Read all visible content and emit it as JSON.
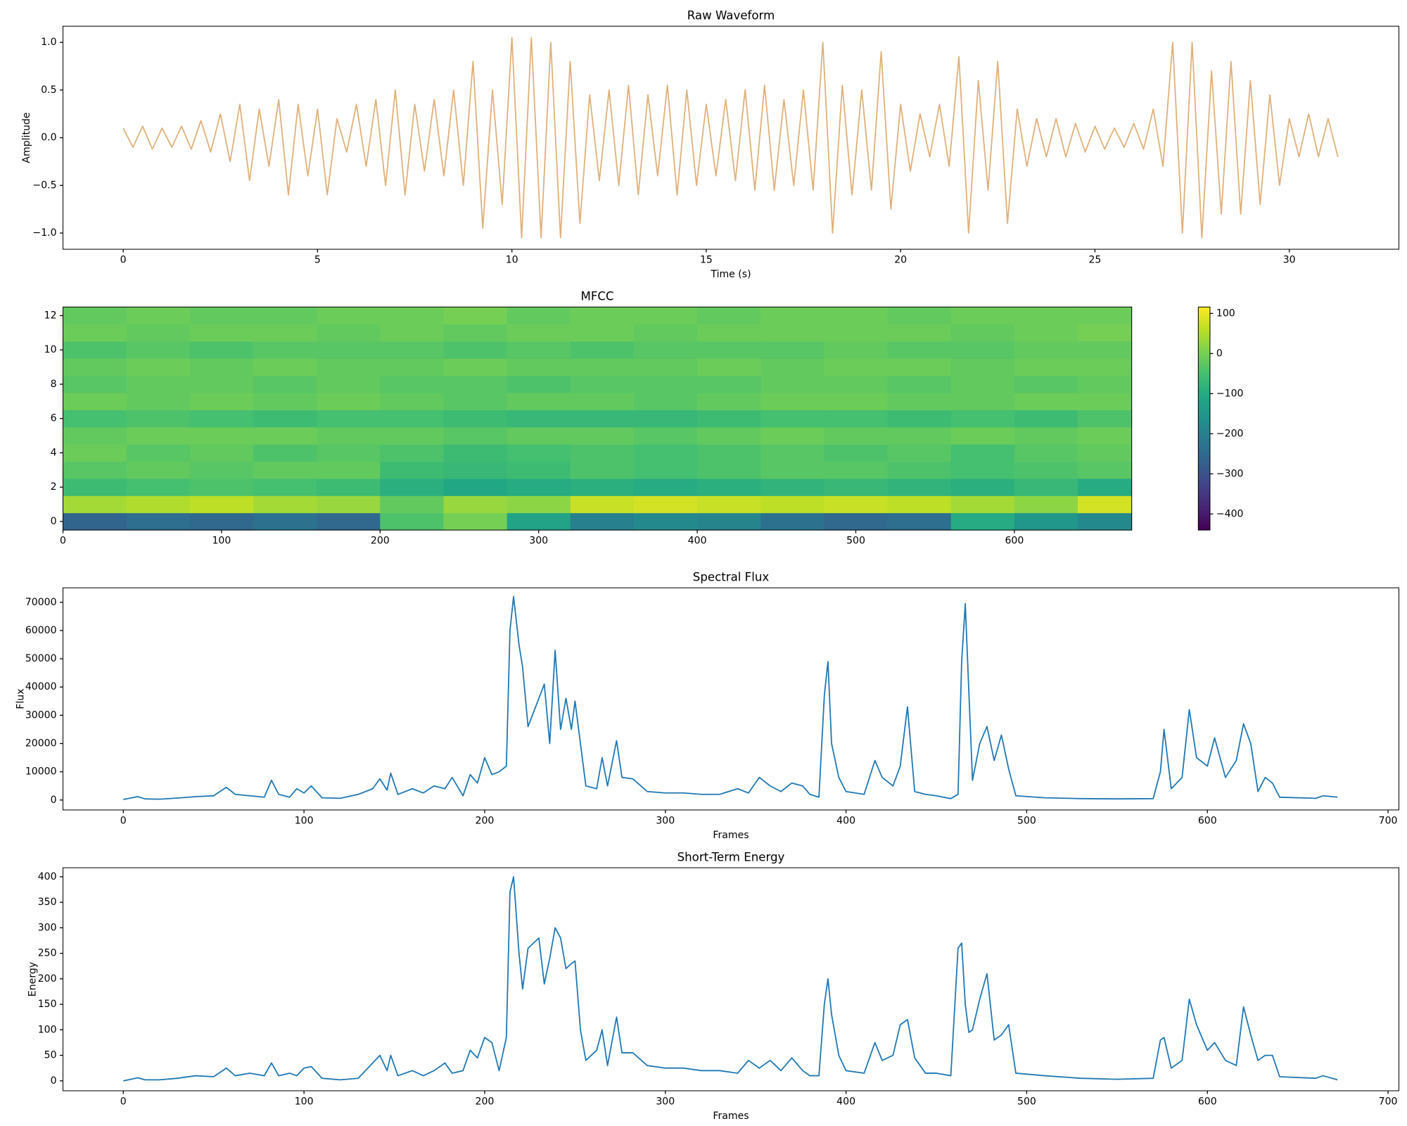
{
  "chart_data": [
    {
      "type": "line",
      "title": "Raw Waveform",
      "xlabel": "Time (s)",
      "ylabel": "Amplitude",
      "color": "#e0b07a",
      "xlim": [
        -1.55,
        32.82
      ],
      "ylim": [
        -1.17,
        1.17
      ],
      "xticks": [
        0,
        5,
        10,
        15,
        20,
        25,
        30
      ],
      "yticks": [
        {
          "value": -1,
          "label": "−1.0"
        },
        {
          "value": -0.5,
          "label": "−0.5"
        },
        {
          "value": 0,
          "label": "0.0"
        },
        {
          "value": 0.5,
          "label": "0.5"
        },
        {
          "value": 1,
          "label": "1.0"
        }
      ],
      "x": [
        0,
        0.25,
        0.5,
        0.75,
        1,
        1.25,
        1.5,
        1.75,
        2,
        2.25,
        2.5,
        2.75,
        3,
        3.25,
        3.5,
        3.75,
        4,
        4.25,
        4.5,
        4.75,
        5,
        5.25,
        5.5,
        5.75,
        6,
        6.25,
        6.5,
        6.75,
        7,
        7.25,
        7.5,
        7.75,
        8,
        8.25,
        8.5,
        8.75,
        9,
        9.25,
        9.5,
        9.75,
        10,
        10.25,
        10.5,
        10.75,
        11,
        11.25,
        11.5,
        11.75,
        12,
        12.25,
        12.5,
        12.75,
        13,
        13.25,
        13.5,
        13.75,
        14,
        14.25,
        14.5,
        14.75,
        15,
        15.25,
        15.5,
        15.75,
        16,
        16.25,
        16.5,
        16.75,
        17,
        17.25,
        17.5,
        17.75,
        18,
        18.25,
        18.5,
        18.75,
        19,
        19.25,
        19.5,
        19.75,
        20,
        20.25,
        20.5,
        20.75,
        21,
        21.25,
        21.5,
        21.75,
        22,
        22.25,
        22.5,
        22.75,
        23,
        23.25,
        23.5,
        23.75,
        24,
        24.25,
        24.5,
        24.75,
        25,
        25.25,
        25.5,
        25.75,
        26,
        26.25,
        26.5,
        26.75,
        27,
        27.25,
        27.5,
        27.75,
        28,
        28.25,
        28.5,
        28.75,
        29,
        29.25,
        29.5,
        29.75,
        30,
        30.25,
        30.5,
        30.75,
        31,
        31.25
      ],
      "values": [
        0.1,
        -0.1,
        0.12,
        -0.12,
        0.1,
        -0.1,
        0.12,
        -0.12,
        0.18,
        -0.15,
        0.25,
        -0.25,
        0.35,
        -0.45,
        0.3,
        -0.3,
        0.4,
        -0.6,
        0.35,
        -0.4,
        0.3,
        -0.6,
        0.2,
        -0.15,
        0.35,
        -0.3,
        0.4,
        -0.5,
        0.5,
        -0.6,
        0.35,
        -0.35,
        0.4,
        -0.4,
        0.5,
        -0.5,
        0.8,
        -0.95,
        0.5,
        -0.7,
        1.05,
        -1.05,
        1.05,
        -1.05,
        1.0,
        -1.05,
        0.8,
        -0.9,
        0.45,
        -0.45,
        0.5,
        -0.5,
        0.55,
        -0.6,
        0.45,
        -0.4,
        0.55,
        -0.6,
        0.5,
        -0.5,
        0.35,
        -0.4,
        0.4,
        -0.45,
        0.5,
        -0.55,
        0.55,
        -0.55,
        0.4,
        -0.5,
        0.5,
        -0.55,
        1.0,
        -1.0,
        0.55,
        -0.6,
        0.5,
        -0.55,
        0.9,
        -0.75,
        0.35,
        -0.35,
        0.25,
        -0.2,
        0.35,
        -0.3,
        0.85,
        -1.0,
        0.6,
        -0.55,
        0.8,
        -0.9,
        0.3,
        -0.3,
        0.2,
        -0.2,
        0.2,
        -0.2,
        0.15,
        -0.15,
        0.12,
        -0.12,
        0.1,
        -0.1,
        0.15,
        -0.12,
        0.3,
        -0.3,
        1.0,
        -1.0,
        1.0,
        -1.05,
        0.7,
        -0.8,
        0.8,
        -0.8,
        0.6,
        -0.7,
        0.45,
        -0.5,
        0.2,
        -0.2,
        0.25,
        -0.2,
        0.2,
        -0.2
      ]
    },
    {
      "type": "heatmap",
      "title": "MFCC",
      "colormap": "viridis",
      "xlim": [
        0,
        674
      ],
      "ylim": [
        -0.5,
        12.5
      ],
      "xticks": [
        0,
        100,
        200,
        300,
        400,
        500,
        600
      ],
      "yticks": [
        0,
        2,
        4,
        6,
        8,
        10,
        12
      ],
      "zlim": [
        -440,
        116
      ],
      "zticks": [
        {
          "value": -400,
          "label": "−400"
        },
        {
          "value": -300,
          "label": "−300"
        },
        {
          "value": -200,
          "label": "−200"
        },
        {
          "value": -100,
          "label": "−100"
        },
        0,
        100
      ],
      "xbins": [
        0,
        40,
        80,
        120,
        160,
        200,
        240,
        280,
        320,
        360,
        400,
        440,
        480,
        520,
        560,
        600,
        640,
        674
      ],
      "z": [
        [
          -260,
          -240,
          -250,
          -230,
          -250,
          -40,
          0,
          -120,
          -200,
          -180,
          -190,
          -230,
          -250,
          -240,
          -100,
          -150,
          -180
        ],
        [
          40,
          50,
          60,
          40,
          30,
          -20,
          30,
          20,
          70,
          80,
          70,
          60,
          70,
          60,
          40,
          20,
          80
        ],
        [
          -60,
          -50,
          -40,
          -50,
          -60,
          -90,
          -110,
          -100,
          -90,
          -100,
          -90,
          -80,
          -70,
          -80,
          -90,
          -70,
          -100
        ],
        [
          -30,
          -20,
          -30,
          -20,
          -20,
          -60,
          -70,
          -60,
          -40,
          -50,
          -40,
          -30,
          -30,
          -40,
          -50,
          -40,
          -30
        ],
        [
          -10,
          -30,
          -20,
          -40,
          -30,
          -40,
          -60,
          -50,
          -40,
          -50,
          -40,
          -30,
          -40,
          -30,
          -50,
          -30,
          -20
        ],
        [
          -20,
          -10,
          -10,
          -10,
          -20,
          -20,
          -30,
          -20,
          -20,
          -30,
          -20,
          -10,
          -20,
          -20,
          -10,
          -20,
          -10
        ],
        [
          -50,
          -40,
          -50,
          -60,
          -50,
          -50,
          -60,
          -70,
          -70,
          -70,
          -60,
          -50,
          -50,
          -60,
          -50,
          -60,
          -40
        ],
        [
          -10,
          -20,
          -10,
          -20,
          -10,
          -20,
          -30,
          -20,
          -20,
          -30,
          -20,
          -10,
          -10,
          -20,
          -20,
          -10,
          -10
        ],
        [
          -30,
          -20,
          -20,
          -30,
          -20,
          -30,
          -30,
          -40,
          -30,
          -30,
          -30,
          -20,
          -20,
          -30,
          -20,
          -30,
          -20
        ],
        [
          -20,
          -10,
          -20,
          -10,
          -20,
          -20,
          -10,
          -20,
          -20,
          -20,
          -10,
          -20,
          -10,
          -10,
          -20,
          -10,
          -10
        ],
        [
          -40,
          -30,
          -40,
          -30,
          -30,
          -30,
          -40,
          -30,
          -40,
          -30,
          -30,
          -30,
          -20,
          -30,
          -30,
          -20,
          -20
        ],
        [
          -10,
          -20,
          -10,
          -10,
          -20,
          -10,
          -20,
          -10,
          -10,
          -20,
          -10,
          -10,
          -10,
          -10,
          -20,
          -10,
          0
        ],
        [
          -20,
          -10,
          -20,
          -20,
          -10,
          -10,
          0,
          -20,
          -10,
          -10,
          -20,
          -10,
          -10,
          -20,
          -10,
          -10,
          -10
        ]
      ]
    },
    {
      "type": "line",
      "title": "Spectral Flux",
      "xlabel": "Frames",
      "ylabel": "Flux",
      "color": "#1f77b4",
      "xlim": [
        -33.4,
        706
      ],
      "ylim": [
        -3516,
        75113
      ],
      "xticks": [
        0,
        100,
        200,
        300,
        400,
        500,
        600,
        700
      ],
      "yticks": [
        0,
        10000,
        20000,
        30000,
        40000,
        50000,
        60000,
        70000
      ],
      "x": [
        0,
        8,
        12,
        20,
        30,
        40,
        50,
        57,
        62,
        70,
        78,
        82,
        86,
        92,
        96,
        100,
        104,
        110,
        120,
        130,
        138,
        142,
        146,
        148,
        152,
        160,
        166,
        172,
        178,
        182,
        188,
        192,
        196,
        200,
        204,
        208,
        212,
        214,
        216,
        219,
        221,
        224,
        230,
        233,
        236,
        239,
        242,
        245,
        248,
        250,
        253,
        256,
        262,
        265,
        268,
        273,
        276,
        282,
        290,
        300,
        310,
        320,
        330,
        340,
        346,
        352,
        358,
        364,
        370,
        376,
        380,
        385,
        388,
        390,
        392,
        396,
        400,
        410,
        416,
        420,
        426,
        430,
        434,
        438,
        444,
        450,
        458,
        462,
        464,
        466,
        468,
        470,
        474,
        478,
        482,
        486,
        490,
        494,
        510,
        530,
        550,
        570,
        574,
        576,
        580,
        586,
        590,
        594,
        600,
        604,
        610,
        616,
        620,
        624,
        628,
        632,
        636,
        640,
        660,
        664,
        672
      ],
      "values": [
        200,
        1200,
        400,
        300,
        700,
        1200,
        1500,
        4500,
        2000,
        1500,
        1000,
        7000,
        2000,
        1000,
        4000,
        2500,
        5000,
        800,
        600,
        2000,
        4000,
        7500,
        3500,
        9500,
        2000,
        4000,
        2500,
        5000,
        4000,
        8000,
        1500,
        9000,
        6000,
        15000,
        9000,
        10000,
        12000,
        60000,
        72000,
        55000,
        47000,
        26000,
        36000,
        41000,
        20000,
        53000,
        25000,
        36000,
        25000,
        35000,
        20000,
        5000,
        4000,
        15000,
        5000,
        21000,
        8000,
        7500,
        3000,
        2500,
        2500,
        2000,
        2000,
        4000,
        2500,
        8000,
        5000,
        3000,
        6000,
        5000,
        2000,
        1000,
        37000,
        49000,
        20000,
        8000,
        3000,
        2000,
        14000,
        8000,
        5000,
        12000,
        33000,
        3000,
        2000,
        1500,
        500,
        2000,
        49000,
        69500,
        38000,
        7000,
        20000,
        26000,
        14000,
        23000,
        11000,
        1500,
        800,
        500,
        400,
        500,
        10000,
        25000,
        4000,
        8000,
        32000,
        15000,
        12000,
        22000,
        8000,
        14000,
        27000,
        20000,
        3000,
        8000,
        6000,
        1000,
        600,
        1500,
        1000
      ]
    },
    {
      "type": "line",
      "title": "Short-Term Energy",
      "xlabel": "Frames",
      "ylabel": "Energy",
      "color": "#1f77b4",
      "xlim": [
        -33.4,
        706
      ],
      "ylim": [
        -19.5,
        417.7
      ],
      "xticks": [
        0,
        100,
        200,
        300,
        400,
        500,
        600,
        700
      ],
      "yticks": [
        0,
        50,
        100,
        150,
        200,
        250,
        300,
        350,
        400
      ],
      "x": [
        0,
        8,
        12,
        20,
        30,
        40,
        50,
        57,
        62,
        70,
        78,
        82,
        86,
        92,
        96,
        100,
        104,
        110,
        120,
        130,
        138,
        142,
        146,
        148,
        152,
        160,
        166,
        172,
        178,
        182,
        188,
        192,
        196,
        200,
        204,
        208,
        212,
        214,
        216,
        219,
        221,
        224,
        230,
        233,
        236,
        239,
        242,
        245,
        248,
        250,
        253,
        256,
        262,
        265,
        268,
        273,
        276,
        282,
        290,
        300,
        310,
        320,
        330,
        340,
        346,
        352,
        358,
        364,
        370,
        376,
        380,
        385,
        388,
        390,
        392,
        396,
        400,
        410,
        416,
        420,
        426,
        430,
        434,
        438,
        444,
        450,
        458,
        462,
        464,
        466,
        468,
        470,
        474,
        478,
        482,
        486,
        490,
        494,
        510,
        530,
        550,
        570,
        574,
        576,
        580,
        586,
        590,
        594,
        600,
        604,
        610,
        616,
        620,
        624,
        628,
        632,
        636,
        640,
        660,
        664,
        672
      ],
      "values": [
        0,
        6,
        2,
        2,
        5,
        10,
        8,
        25,
        10,
        15,
        10,
        35,
        10,
        15,
        10,
        25,
        28,
        5,
        2,
        5,
        35,
        50,
        20,
        50,
        10,
        20,
        10,
        20,
        35,
        15,
        20,
        60,
        45,
        85,
        75,
        20,
        85,
        370,
        400,
        250,
        180,
        260,
        280,
        190,
        240,
        300,
        280,
        220,
        230,
        235,
        100,
        40,
        60,
        100,
        30,
        125,
        55,
        55,
        30,
        25,
        25,
        20,
        20,
        15,
        40,
        25,
        40,
        20,
        45,
        20,
        10,
        10,
        150,
        200,
        130,
        50,
        20,
        15,
        75,
        40,
        50,
        110,
        120,
        45,
        15,
        15,
        10,
        260,
        270,
        150,
        95,
        100,
        160,
        210,
        80,
        90,
        110,
        15,
        10,
        5,
        3,
        5,
        80,
        85,
        25,
        40,
        160,
        110,
        60,
        75,
        40,
        30,
        145,
        90,
        40,
        50,
        50,
        8,
        5,
        10,
        2
      ]
    }
  ]
}
